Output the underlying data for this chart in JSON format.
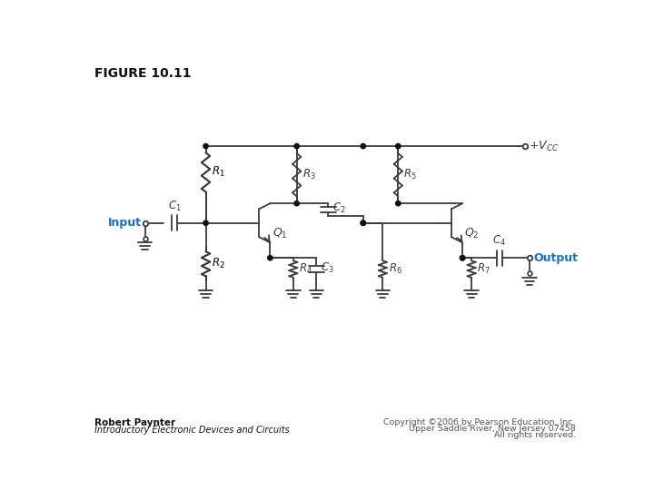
{
  "title": "FIGURE 10.11",
  "footer_left_line1": "Robert Paynter",
  "footer_left_line2": "Introductory Electronic Devices and Circuits",
  "footer_right_line1": "Copyright ©2006 by Pearson Education, Inc.",
  "footer_right_line2": "Upper Saddle River, New Jersey 07458",
  "footer_right_line3": "All rights reserved.",
  "input_label": "Input",
  "output_label": "Output",
  "bg_color": "#ffffff",
  "line_color": "#3a3a3a",
  "blue_color": "#1a6fbb",
  "dot_color": "#111111",
  "label_color": "#3a3a3a"
}
